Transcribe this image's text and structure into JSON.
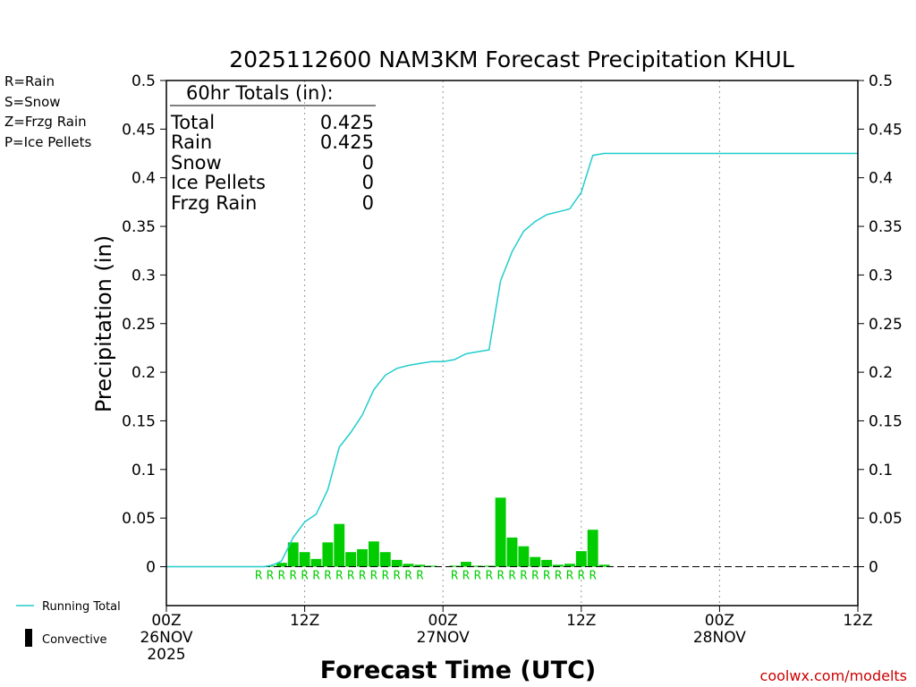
{
  "chart_data": {
    "type": "bar",
    "title": "2025112600 NAM3KM Forecast Precipitation KHUL",
    "xlabel": "Forecast Time (UTC)",
    "ylabel": "Precipitation (in)",
    "ylim": [
      -0.04,
      0.5
    ],
    "xlim_hours": [
      0,
      60
    ],
    "y_ticks": [
      "0.5",
      "0.45",
      "0.4",
      "0.35",
      "0.3",
      "0.25",
      "0.2",
      "0.15",
      "0.1",
      "0.05",
      "0"
    ],
    "y_tick_values": [
      0.5,
      0.45,
      0.4,
      0.35,
      0.3,
      0.25,
      0.2,
      0.15,
      0.1,
      0.05,
      0
    ],
    "x_ticks": [
      {
        "hour": 0,
        "lines": [
          "00Z",
          "26NOV",
          "2025"
        ]
      },
      {
        "hour": 12,
        "lines": [
          "12Z"
        ]
      },
      {
        "hour": 24,
        "lines": [
          "00Z",
          "27NOV"
        ]
      },
      {
        "hour": 36,
        "lines": [
          "12Z"
        ]
      },
      {
        "hour": 48,
        "lines": [
          "00Z",
          "28NOV"
        ]
      },
      {
        "hour": 60,
        "lines": [
          "12Z"
        ]
      }
    ],
    "gridlines_hours": [
      12,
      24,
      36,
      48
    ],
    "precip_type_legend": [
      {
        "label": "R=Rain",
        "color": "#22cc22"
      },
      {
        "label": "S=Snow",
        "color": "#3355dd"
      },
      {
        "label": "Z=Frzg Rain",
        "color": "#ee8833"
      },
      {
        "label": "P=Ice Pellets",
        "color": "#ee2288"
      }
    ],
    "totals_box": {
      "heading": "60hr Totals (in):",
      "rows": [
        {
          "label": "Total",
          "value": "0.425"
        },
        {
          "label": "Rain",
          "value": "0.425"
        },
        {
          "label": "Snow",
          "value": "0"
        },
        {
          "label": "Ice Pellets",
          "value": "0"
        },
        {
          "label": "Frzg Rain",
          "value": "0"
        }
      ]
    },
    "series": [
      {
        "name": "Hourly Precipitation",
        "color": "#00cc00",
        "bars": [
          {
            "hour": 9,
            "value": 0.001
          },
          {
            "hour": 10,
            "value": 0.004
          },
          {
            "hour": 11,
            "value": 0.025
          },
          {
            "hour": 12,
            "value": 0.015
          },
          {
            "hour": 13,
            "value": 0.008
          },
          {
            "hour": 14,
            "value": 0.025
          },
          {
            "hour": 15,
            "value": 0.044
          },
          {
            "hour": 16,
            "value": 0.015
          },
          {
            "hour": 17,
            "value": 0.018
          },
          {
            "hour": 18,
            "value": 0.026
          },
          {
            "hour": 19,
            "value": 0.015
          },
          {
            "hour": 20,
            "value": 0.007
          },
          {
            "hour": 21,
            "value": 0.003
          },
          {
            "hour": 22,
            "value": 0.002
          },
          {
            "hour": 23,
            "value": 0.001
          },
          {
            "hour": 25,
            "value": 0.001
          },
          {
            "hour": 26,
            "value": 0.005
          },
          {
            "hour": 27,
            "value": 0.001
          },
          {
            "hour": 28,
            "value": 0.001
          },
          {
            "hour": 29,
            "value": 0.071
          },
          {
            "hour": 30,
            "value": 0.03
          },
          {
            "hour": 31,
            "value": 0.021
          },
          {
            "hour": 32,
            "value": 0.01
          },
          {
            "hour": 33,
            "value": 0.007
          },
          {
            "hour": 34,
            "value": 0.002
          },
          {
            "hour": 35,
            "value": 0.003
          },
          {
            "hour": 36,
            "value": 0.016
          },
          {
            "hour": 37,
            "value": 0.038
          },
          {
            "hour": 38,
            "value": 0.002
          }
        ]
      },
      {
        "name": "Running Total",
        "color": "#22cccc",
        "x": [
          0,
          7,
          8,
          8.5,
          9,
          9.5,
          10,
          11,
          12,
          13,
          14,
          15,
          16,
          17,
          18,
          19,
          20,
          21,
          22,
          23,
          24,
          25,
          26,
          27,
          28,
          29,
          30,
          31,
          32,
          33,
          34,
          35,
          36,
          37,
          38,
          60
        ],
        "y": [
          0,
          0,
          0,
          0,
          0.001,
          0.003,
          0.006,
          0.03,
          0.046,
          0.054,
          0.079,
          0.123,
          0.138,
          0.156,
          0.182,
          0.197,
          0.204,
          0.207,
          0.209,
          0.211,
          0.211,
          0.213,
          0.219,
          0.221,
          0.223,
          0.294,
          0.324,
          0.345,
          0.355,
          0.362,
          0.365,
          0.368,
          0.385,
          0.423,
          0.425,
          0.425
        ]
      }
    ],
    "rain_marker_hours": [
      8,
      9,
      10,
      11,
      12,
      13,
      14,
      15,
      16,
      17,
      18,
      19,
      20,
      21,
      22,
      25,
      26,
      27,
      28,
      29,
      30,
      31,
      32,
      33,
      34,
      35,
      36,
      37
    ],
    "rain_marker_label": "R",
    "bottom_legend": [
      {
        "label": "Running Total",
        "kind": "line",
        "color": "#22cccc"
      },
      {
        "label": "Convective",
        "kind": "bar",
        "color": "#000000"
      }
    ],
    "credit": "coolwx.com/modelts"
  }
}
